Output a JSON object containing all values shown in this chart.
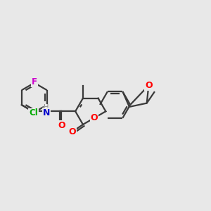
{
  "background_color": "#e8e8e8",
  "bond_color": "#3a3a3a",
  "atom_colors": {
    "O": "#ff0000",
    "N": "#0000cc",
    "Cl": "#00aa00",
    "F": "#cc00cc",
    "C": "#3a3a3a"
  },
  "figsize": [
    3.0,
    3.0
  ],
  "dpi": 100,
  "lw": 1.6,
  "bl": 0.3
}
